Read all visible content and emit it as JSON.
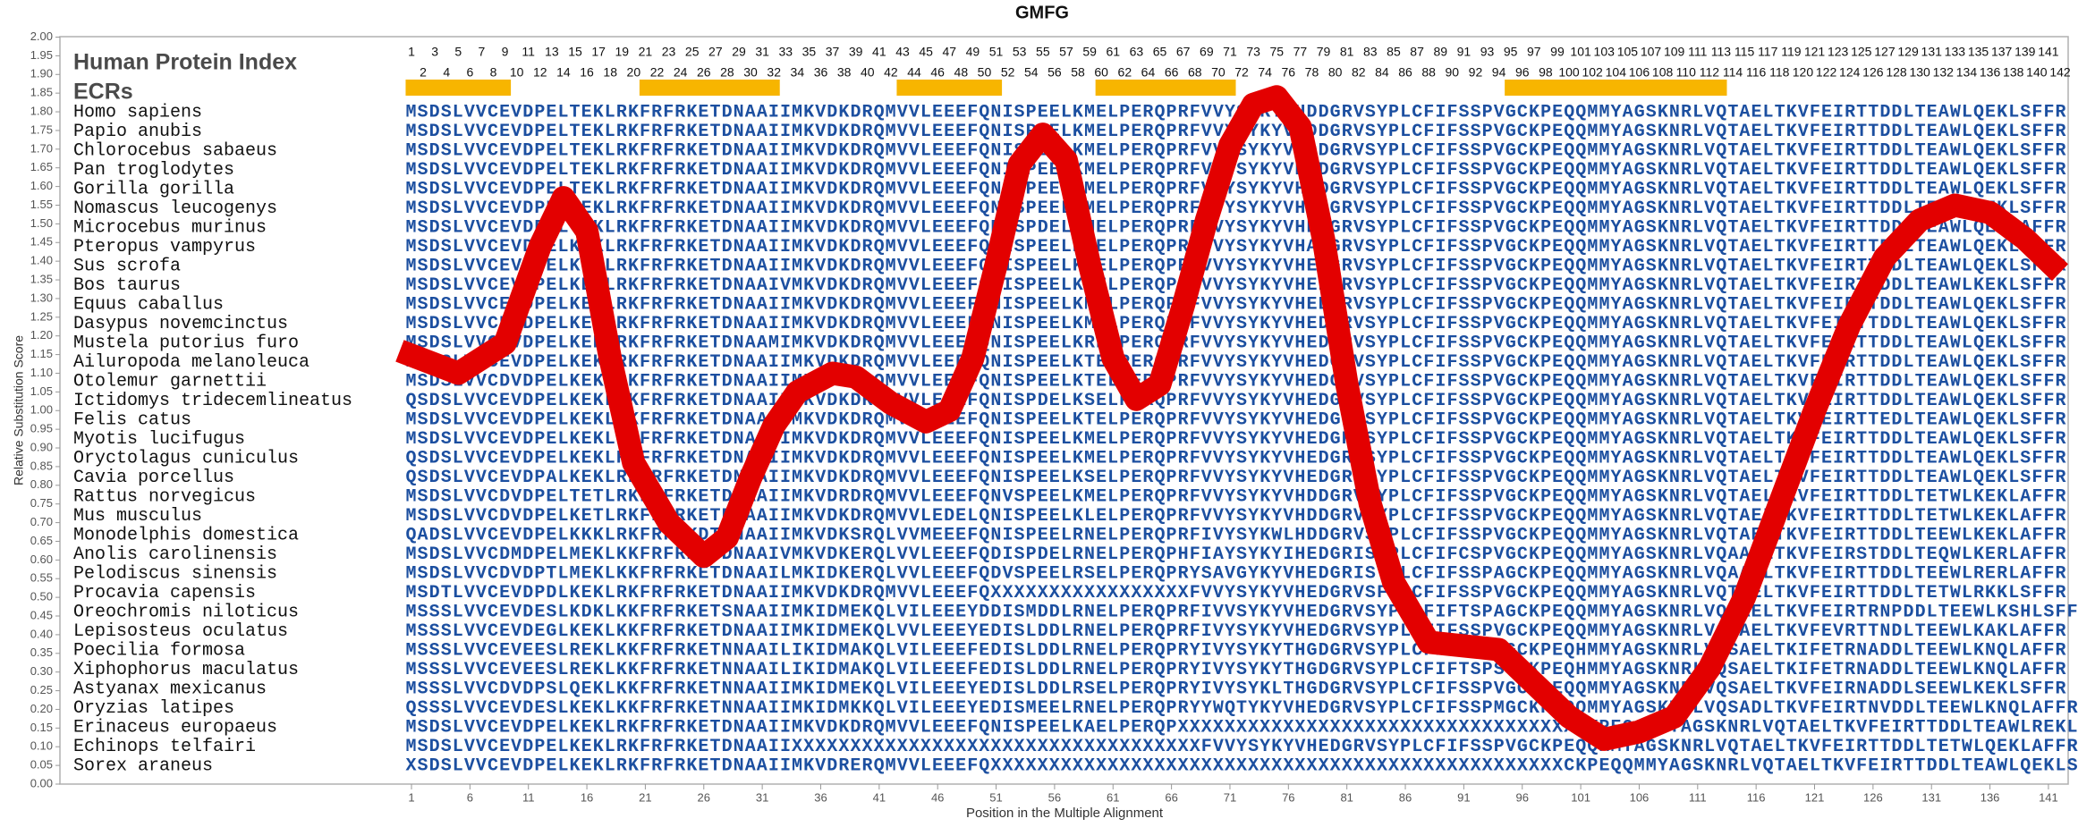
{
  "chart_data": {
    "type": "line",
    "title": "GMFG",
    "x_label": "Position in the Multiple Alignment",
    "y_label": "Relative Substitution Score",
    "header_label": "Human Protein Index",
    "ecr_label": "ECRs",
    "color": "#e30000",
    "ecr_color": "#f7b500",
    "xlim": [
      1,
      142
    ],
    "ylim": [
      0,
      2
    ],
    "xticks": [
      1,
      6,
      11,
      16,
      21,
      26,
      31,
      36,
      41,
      46,
      51,
      56,
      61,
      66,
      71,
      76,
      81,
      86,
      91,
      96,
      101,
      106,
      111,
      116,
      121,
      126,
      131,
      136,
      141
    ],
    "yticks": [
      {
        "value": 0,
        "label": "0.00"
      },
      {
        "value": 0.05,
        "label": "0.05"
      },
      {
        "value": 0.1,
        "label": "0.10"
      },
      {
        "value": 0.15,
        "label": "0.15"
      },
      {
        "value": 0.2,
        "label": "0.20"
      },
      {
        "value": 0.25,
        "label": "0.25"
      },
      {
        "value": 0.3,
        "label": "0.30"
      },
      {
        "value": 0.35,
        "label": "0.35"
      },
      {
        "value": 0.4,
        "label": "0.40"
      },
      {
        "value": 0.45,
        "label": "0.45"
      },
      {
        "value": 0.5,
        "label": "0.50"
      },
      {
        "value": 0.55,
        "label": "0.55"
      },
      {
        "value": 0.6,
        "label": "0.60"
      },
      {
        "value": 0.65,
        "label": "0.65"
      },
      {
        "value": 0.7,
        "label": "0.70"
      },
      {
        "value": 0.75,
        "label": "0.75"
      },
      {
        "value": 0.8,
        "label": "0.80"
      },
      {
        "value": 0.85,
        "label": "0.85"
      },
      {
        "value": 0.9,
        "label": "0.90"
      },
      {
        "value": 0.95,
        "label": "0.95"
      },
      {
        "value": 1,
        "label": "1.00"
      },
      {
        "value": 1.05,
        "label": "1.05"
      },
      {
        "value": 1.1,
        "label": "1.10"
      },
      {
        "value": 1.15,
        "label": "1.15"
      },
      {
        "value": 1.2,
        "label": "1.20"
      },
      {
        "value": 1.25,
        "label": "1.25"
      },
      {
        "value": 1.3,
        "label": "1.30"
      },
      {
        "value": 1.35,
        "label": "1.35"
      },
      {
        "value": 1.4,
        "label": "1.40"
      },
      {
        "value": 1.45,
        "label": "1.45"
      },
      {
        "value": 1.5,
        "label": "1.50"
      },
      {
        "value": 1.55,
        "label": "1.55"
      },
      {
        "value": 1.6,
        "label": "1.60"
      },
      {
        "value": 1.65,
        "label": "1.65"
      },
      {
        "value": 1.7,
        "label": "1.70"
      },
      {
        "value": 1.75,
        "label": "1.75"
      },
      {
        "value": 1.8,
        "label": "1.80"
      },
      {
        "value": 1.85,
        "label": "1.85"
      },
      {
        "value": 1.9,
        "label": "1.90"
      },
      {
        "value": 1.95,
        "label": "1.95"
      },
      {
        "value": 2,
        "label": "2.00"
      }
    ],
    "x": [
      0,
      5,
      9,
      12,
      14,
      16,
      18,
      20,
      23,
      26,
      28,
      30,
      32,
      34,
      37,
      39,
      42,
      45,
      47,
      49,
      51,
      53,
      55,
      57,
      59,
      61,
      63,
      65,
      67,
      69,
      71,
      73,
      75,
      77,
      79,
      81,
      83,
      85,
      88,
      91,
      94,
      97,
      100,
      103,
      106,
      109,
      112,
      115,
      118,
      121,
      124,
      127,
      130,
      133,
      136,
      139,
      142
    ],
    "values": [
      1.16,
      1.1,
      1.18,
      1.44,
      1.57,
      1.48,
      1.14,
      0.86,
      0.7,
      0.61,
      0.66,
      0.82,
      0.96,
      1.05,
      1.1,
      1.09,
      1.02,
      0.97,
      1.0,
      1.14,
      1.39,
      1.66,
      1.74,
      1.67,
      1.39,
      1.14,
      1.03,
      1.07,
      1.28,
      1.51,
      1.71,
      1.82,
      1.84,
      1.76,
      1.46,
      1.07,
      0.75,
      0.54,
      0.38,
      0.37,
      0.36,
      0.27,
      0.18,
      0.12,
      0.14,
      0.18,
      0.31,
      0.5,
      0.75,
      1.0,
      1.23,
      1.41,
      1.51,
      1.55,
      1.53,
      1.46,
      1.37
    ],
    "ecrs": [
      [
        1,
        9
      ],
      [
        21,
        32
      ],
      [
        43,
        51
      ],
      [
        60,
        71
      ],
      [
        95,
        113
      ]
    ],
    "positions": [
      1,
      2,
      3,
      4,
      5,
      6,
      7,
      8,
      9,
      10,
      11,
      12,
      13,
      14,
      15,
      16,
      17,
      18,
      19,
      20,
      21,
      22,
      23,
      24,
      25,
      26,
      27,
      28,
      29,
      30,
      31,
      32,
      33,
      34,
      35,
      36,
      37,
      38,
      39,
      40,
      41,
      42,
      43,
      44,
      45,
      46,
      47,
      48,
      49,
      50,
      51,
      52,
      53,
      54,
      55,
      56,
      57,
      58,
      59,
      60,
      61,
      62,
      63,
      64,
      65,
      66,
      67,
      68,
      69,
      70,
      71,
      72,
      73,
      74,
      75,
      76,
      77,
      78,
      79,
      80,
      81,
      82,
      83,
      84,
      85,
      86,
      87,
      88,
      89,
      90,
      91,
      92,
      93,
      94,
      95,
      96,
      97,
      98,
      99,
      100,
      101,
      102,
      103,
      104,
      105,
      106,
      107,
      108,
      109,
      110,
      111,
      112,
      113,
      114,
      115,
      116,
      117,
      118,
      119,
      120,
      121,
      122,
      123,
      124,
      125,
      126,
      127,
      128,
      129,
      130,
      131,
      132,
      133,
      134,
      135,
      136,
      137,
      138,
      139,
      140,
      141,
      142
    ],
    "species": [
      {
        "name": "Homo sapiens",
        "sequence": "MSDSLVVCEVDPELTEKLRKFRFRKETDNAAIIMKVDKDRQMVVLEEEFQNISPEELKMELPERQPRFVVYSYKYVHDDGRVSYPLCFIFSSPVGCKPEQQMMYAGSKNRLVQTAELTKVFEIRTTDDLTEAWLQEKLSFFR"
      },
      {
        "name": "Papio anubis",
        "sequence": "MSDSLVVCEVDPELTEKLRKFRFRKETDNAAIIMKVDKDRQMVVLEEEFQNISPEELKMELPERQPRFVVYSYKYVHDDGRVSYPLCFIFSSPVGCKPEQQMMYAGSKNRLVQTAELTKVFEIRTTDDLTEAWLQEKLSFFR"
      },
      {
        "name": "Chlorocebus sabaeus",
        "sequence": "MSDSLVVCEVDPELTEKLRKFRFRKETDNAAIIMKVDKDRQMVVLEEEFQNISPEELKMELPERQPRFVVYSYKYVHDDGRVSYPLCFIFSSPVGCKPEQQMMYAGSKNRLVQTAELTKVFEIRTTDDLTEAWLQEKLSFFR"
      },
      {
        "name": "Pan troglodytes",
        "sequence": "MSDSLVVCEVDPELTEKLRKFRFRKETDNAAIIMKVDKDRQMVVLEEEFQNISPEELKMELPERQPRFVVYSYKYVHDDGRVSYPLCFIFSSPVGCKPEQQMMYAGSKNRLVQTAELTKVFEIRTTDDLTEAWLQEKLSFFR"
      },
      {
        "name": "Gorilla gorilla",
        "sequence": "MSDSLVVCEVDPELTEKLRKFRFRKETDNAAIIMKVDKDRQMVVLEEEFQNISPEELKMELPERQPRFVVYSYKYVHDDGRVSYPLCFIFSSPVGCKPEQQMMYAGSKNRLVQTAELTKVFEIRTTDDLTEAWLQEKLSFFR"
      },
      {
        "name": "Nomascus leucogenys",
        "sequence": "MSDSLVVCEVDPELTEKLRKFRFRKETDNAAIIMKVDKDRQMVVLEEEFQNISPEELKMELPERQPRFVVYSYKYVHDDGRVSYPLCFIFSSPVGCKPEQQMMYAGSKNRLVQTAELTKVFEIRTTDDLTEAWLQEKLSFFR"
      },
      {
        "name": "Microcebus murinus",
        "sequence": "MSDSLVVCEVDPELTEKLRKFRFRKETDNAAIIMKVDKDRQMVVLEEEFQNISPDELKMELPERQPRFVVYSYKYVHDDGRVSYPLCFIFSSPVGCKPEQQMMYAGSKNRLVQTAELTKVFEIRTTDDLTEAWLQEKLAFFR"
      },
      {
        "name": "Pteropus vampyrus",
        "sequence": "MSDSLVVCEVDPELKEKLRKFRFRKETDNAAIIMKVDKDRQMVVLEEEFQNISPEELKMELPERQPRFVVYSYKYVHADGRVSYPLCFIFSSPVGCKPEQQMMYAGSKNRLVQTAELTKVFEIRTTDDLTEAWLQEKLSFFR"
      },
      {
        "name": "Sus scrofa",
        "sequence": "MSDSLVVCEVDPELKEKLRKFRFRKETDNAAIIMKVDKDRQMVVLEEEFQNISPEELKMELPERQPRFVVYSYKYVHEDGRVSYPLCFIFSSPVGCKPEQQMMYAGSKNRLVQTAELTKVFEIRTTDDLTEAWLQEKLSFFR"
      },
      {
        "name": "Bos taurus",
        "sequence": "MSDSLVVCEVDPELKEKLRKFRFRKETDNAAIVMKVDKDRQMVVLEEEFQNISPEELKMELPERQPRFVVYSYKYVHEDGRVSYPLCFIFSSPVGCKPEQQMMYAGSKNRLVQTAELTKVFEIRTTDDLTEAWLKEKLSFFR"
      },
      {
        "name": "Equus caballus",
        "sequence": "MSDSLVVCEVDPELKEKLRKFRFRKETDNAAIIMKVDKDRQMVVLEEEFQNISPEELKMELPERQPRFVVYSYKYVHEDGRVSYPLCFIFSSPVGCKPEQQMMYAGSKNRLVQTAELTKVFEIRTTDDLTEAWLQEKLSFFR"
      },
      {
        "name": "Dasypus novemcinctus",
        "sequence": "MSDSLVVCEVDPELKEKLRKFRFRKETDNAAIIMKVDKDRQMVVLEEEFQNISPEELKMELPERQPRFVVYSYKYVHEDGRVSYPLCFIFSSPVGCKPEQQMMYAGSKNRLVQTAELTKVFEIRTTDDLTEAWLQEKLSFFR"
      },
      {
        "name": "Mustela putorius furo",
        "sequence": "MSDSLVVCEVDPELKEKLRKFRFRKETDNAAMIMKVDKDRQMVVLEEEFQNISPEELKRELPERQPRFVVYSYKYVHEDGRVSYPLCFIFSSPVGCKPEQQMMYAGSKNRLVQTAELTKVFEIRTTDDLTEAWLQEKLSFFR"
      },
      {
        "name": "Ailuropoda melanoleuca",
        "sequence": "MSDSLVVCEVDPELKEKLRKFRFRKETDNAAIIMKVDKDRQMVVLEEEFQNISPEELKTELPERQPRFVVYSYKYVHEDGRVSYPLCFIFSSPVGCKPEQQMMYAGSKNRLVQTAELTKVFEIRTTDDLTEAWLQEKLSFFR"
      },
      {
        "name": "Otolemur garnettii",
        "sequence": "MSDSLVVCDVDPELKEKLRKFRFRKETDNAAIIMKVDKDRQMVVLEEEFQNISPEELKTELPERQPRFVVYSYKYVHEDGRVSYPLCFIFSSPVGCKPEQQMMYAGSKNRLVQTAELTKVFEIRTTDDLTEAWLQEKLSFFR"
      },
      {
        "name": "Ictidomys tridecemlineatus",
        "sequence": "QSDSLVVCEVDPELKEKLRKFRFRKETDNAAIIMKVDKDRQMVVLEEEFQNISPDELKSELPERQPRFVVYSYKYVHEDGRVSYPLCFIFSSPVGCKPEQQMMYAGSKNRLVQTAELTKVFEIRTTDDLTEAWLQEKLSFFR"
      },
      {
        "name": "Felis catus",
        "sequence": "MSDSLVVCEVDPELKEKLRKFRFRKETDNAAIIMKVDKDRQMVVLEEEFQNISPEELKTELPERQPRFVVYSYKYVHEDGRVSYPLCFIFSSPVGCKPEQQMMYAGSKNRLVQTAELTKVFEIRTTEDLTEAWLQEKLSFFR"
      },
      {
        "name": "Myotis lucifugus",
        "sequence": "MSDSLVVCEVDPELKEKLRKFRFRKETDNAAIIMKVDKDRQMVVLEEEFQNISPEELKMELPERQPRFVVYSYKYVHEDGRVSYPLCFIFSSPVGCKPEQQMMYAGSKNRLVQTAELTKVFEIRTTDDLTEAWLQEKLSFFR"
      },
      {
        "name": "Oryctolagus cuniculus",
        "sequence": "QSDSLVVCEVDPELKEKLRKFRFRKETDNAAIIMKVDKDRQMVVLEEEFQNISPEELKMELPERQPRFVVYSYKYVHEDGRVSYPLCFIFSSPVGCKPEQQMMYAGSKNRLVQTAELTKVFEIRTTDDLTEAWLQEKLSFFR"
      },
      {
        "name": "Cavia porcellus",
        "sequence": "QSDSLVVCEVDPALKEKLRKFRFRKETDNAAIIMKVDKDRQMVVLEEEFQNISPEELKSELPERQPRFVVYSYKYVHEDGRVSYPLCFIFSSPVGCKPEQQMMYAGSKNRLVQTAELTKVFEIRTTDDLTEAWLQEKLSFFR"
      },
      {
        "name": "Rattus norvegicus",
        "sequence": "MSDSLVVCDVDPELTETLRKFRFRKETDNAAIIMKVDRDRQMVVLEEEFQNVSPEELKMELPERQPRFVVYSYKYVHDDGRVSYPLCFIFSSPVGCKPEQQMMYAGSKNRLVQTAELTKVFEIRTTDDLTETWLKEKLAFFR"
      },
      {
        "name": "Mus musculus",
        "sequence": "MSDSLVVCDVDPELKETLRKFRFRKETDNAAIIMKVDKDRQMVVLEDELQNISPEELKLELPERQPRFVVYSYKYVHDDGRVSYPLCFIFSSPVGCKPEQQMMYAGSKNRLVQTAELTKVFEIRTTDDLTETWLKEKLAFFR"
      },
      {
        "name": "Monodelphis domestica",
        "sequence": "QADSLVVCEVDPELKKKLRKFRFRKDTNNAAIIMKVDKSRQLVVMEEEFQNISPEELRNELPERQPRFIVYSYKWLHDDGRVSYPLCFIFSSPVGCKPEQQMMYAGSKNRLVQTAELTKVFEIRTTDDLTEEWLKEKLAFFR"
      },
      {
        "name": "Anolis carolinensis",
        "sequence": "MSDSLVVCDMDPELMEKLKKFRFRKETDNAAIVMKVDKERQLVVLEEEFQDISPDELRNELPERQPHFIAYSYKYIHEDGRISYPLCFIFCSPVGCKPEQQMMYAGSKNRLVQAAELTKVFEIRSTDDLTEQWLKERLAFFR"
      },
      {
        "name": "Pelodiscus sinensis",
        "sequence": "MSDSLVVCDVDPTLMEKLKKFRFRKETDNAAILMKIDKERQLVVLEEEFQDVSPEELRSELPERQPRYSAVGYKYVHEDGRISYPLCFIFSSPAGCKPEQQMMYAGSKNRLVQAAELTKVFEIRTTDDLTEEWLRERLAFFR"
      },
      {
        "name": "Procavia capensis",
        "sequence": "MSDTLVVCEVDPDLKEKLRKFRFRKETDNAAIIMKVDKDRQMVVLEEEFQXXXXXXXXXXXXXXXXXFVVYSYKYVHEDGRVSFPLCFIFSSPVGCKPEQQMMYAGSKNRLVQTAELTKVFEIRTTDDLTETWLRKKLSFFR"
      },
      {
        "name": "Oreochromis niloticus",
        "sequence": "MSSSLVVCEVDESLKDKLKKFRFRKETSNAAIIMKIDMEKQLVILEEEYDDISMDDLRNELPERQPRFIVVSYKYVHEDGRVSYPLCFIFTSPAGCKPEQQMMYAGSKNRLVQSAELTKVFEIRTRNPDDLTEEWLKSHLSFFR"
      },
      {
        "name": "Lepisosteus oculatus",
        "sequence": "MSSSLVVCEVDEGLKEKLKKFRFRKETDNAAIIMKIDMEKQLVVLEEEYEDISLDDLRNELPERQPRFIVYSYKYVHEDGRVSYPLCFIFSSPVGCKPEQQMMYAGSKNRLVQTAELTKVFEVRTTNDLTEEWLKAKLAFFR"
      },
      {
        "name": "Poecilia formosa",
        "sequence": "MSSSLVVCEVEESLREKLKKFRFRKETNNAAILIKIDMAKQLVILEEEFEDISLDDLRNELPERQPRYIVYSYKYTHGDGRVSYPLCFIFTSPSGCKPEQHMMYAGSKNRLVQSAELTKIFETRNADDLTEEWLKNQLAFFR"
      },
      {
        "name": "Xiphophorus maculatus",
        "sequence": "MSSSLVVCEVEESLREKLKKFRFRKETNNAAILIKIDMAKQLVILEEEFEDISLDDLRNELPERQPRYIVYSYKYTHGDGRVSYPLCFIFTSPSGCKPEQHMMYAGSKNRLVQSAELTKIFETRNADDLTEEWLKNQLAFFR"
      },
      {
        "name": "Astyanax mexicanus",
        "sequence": "MSSSLVVCDVDPSLQEKLKKFRFRKETNNAAIIMKIDMEKQLVILEEEYEDISLDDLRSELPERQPRYIVYSYKLTHGDGRVSYPLCFIFSSPVGCKPEQQMMYAGSKNRLVQSAELTKVFEIRNADDLSEEWLKEKLSFFR"
      },
      {
        "name": "Oryzias latipes",
        "sequence": "QSSSLVVCEVDESLKEKLKKFRFRKETNNAAIIMKIDMKKQLVILEEEYEDISMEELRNELPERQPRYYWQTYKYVHEDGRVSYPLCFIFSSPMGCKPEQQMMYAGSKNRLVQSADLTKVFEIRTNVDDLTEEWLKNQLAFFR"
      },
      {
        "name": "Erinaceus europaeus",
        "sequence": "MSDSLVVCEVDPELKEKLRKFRFRKETDNAAIIMKVDKDRQMVVLEEEFQNISPEELKAELPERQPXXXXXXXXXXXXXXXXXXXXXXXXXXXXXXXXXXCKPEQQMMYAGSKNRLVQTAELTKVFEIRTTDDLTEAWLREKLSFFR"
      },
      {
        "name": "Echinops telfairi",
        "sequence": "MSDSLVVCEVDPELKEKLRKFRFRKETDNAAIIXXXXXXXXXXXXXXXXXXXXXXXXXXXXXXXXXXXFVVYSYKYVHEDGRVSYPLCFIFSSPVGCKPEQQMMYAGSKNRLVQTAELTKVFEIRTTDDLTETWLQEKLAFFR"
      },
      {
        "name": "Sorex araneus",
        "sequence": "XSDSLVVCEVDPELKEKLRKFRFRKETDNAAIIMKVDRERQMVVLEEEFQXXXXXXXXXXXXXXXXXXXXXXXXXXXXXXXXXXXXXXXXXXXXXXXXXCKPEQQMMYAGSKNRLVQTAELTKVFEIRTTDDLTEAWLQEKLSFFR"
      }
    ]
  }
}
